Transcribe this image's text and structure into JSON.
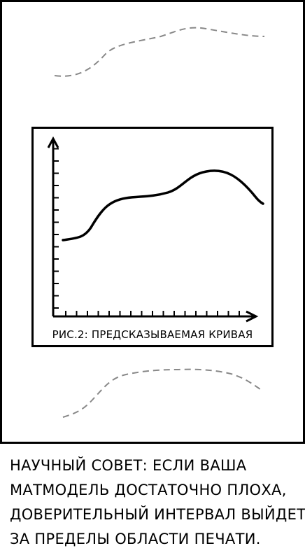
{
  "figure": {
    "caption": "РИС.2: ПРЕДСКАЗЫВАЕМАЯ КРИВАЯ"
  },
  "footer": {
    "lines": [
      "НАУЧНЫЙ СОВЕТ: ЕСЛИ ВАША",
      "МАТМОДЕЛЬ ДОСТАТОЧНО ПЛОХА,",
      "ДОВЕРИТЕЛЬНЫЙ ИНТЕРВАЛ ВЫЙДЕТ",
      "ЗА ПРЕДЕЛЫ ОБЛАСТИ ПЕЧАТИ."
    ]
  },
  "colors": {
    "ink": "#000000",
    "paper": "#ffffff",
    "dashed": "#888888"
  }
}
